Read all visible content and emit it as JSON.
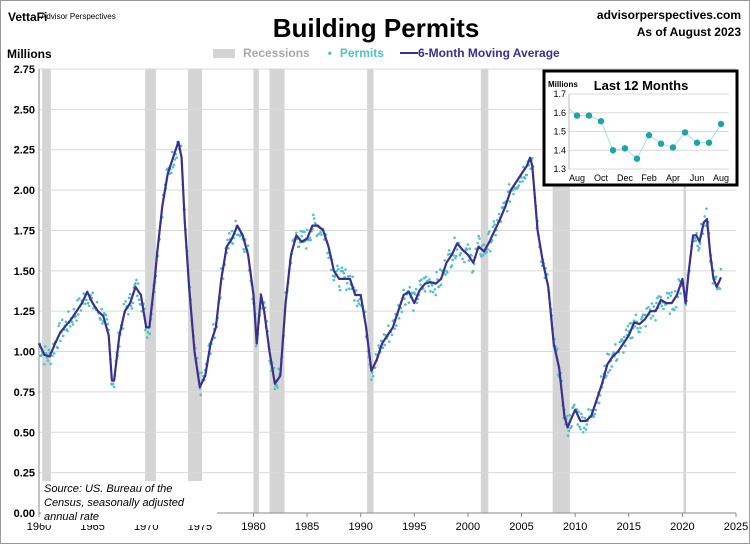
{
  "header": {
    "brand": "VettaFi",
    "brand_sub": "Advisor Perspectives",
    "title": "Building Permits",
    "site": "advisorperspectives.com",
    "as_of": "As of August 2023"
  },
  "source": "Source: US. Bureau of the Census, seasonally adjusted annual rate",
  "colors": {
    "recession": "#d4d4d4",
    "permits": "#4fc1c7",
    "ma": "#3b2f8f",
    "inset": "#1aa6a6"
  },
  "chart_data": [
    {
      "type": "line",
      "title": "Building Permits",
      "ylabel": "Millions",
      "xlabel": "",
      "xlim": [
        1960,
        2025
      ],
      "ylim": [
        0,
        2.75
      ],
      "grid": true,
      "x_ticks": [
        "1960",
        "1965",
        "1970",
        "1975",
        "1980",
        "1985",
        "1990",
        "1995",
        "2000",
        "2005",
        "2010",
        "2015",
        "2020",
        "2025"
      ],
      "y_ticks": [
        "0.00",
        "0.25",
        "0.50",
        "0.75",
        "1.00",
        "1.25",
        "1.50",
        "1.75",
        "2.00",
        "2.25",
        "2.50",
        "2.75"
      ],
      "legend": [
        "Recessions",
        "Permits",
        "6-Month Moving Average"
      ],
      "legend_position": "top-center",
      "recessions": [
        [
          1960.3,
          1961.1
        ],
        [
          1969.9,
          1970.9
        ],
        [
          1973.9,
          1975.2
        ],
        [
          1980.0,
          1980.5
        ],
        [
          1981.5,
          1982.9
        ],
        [
          1990.6,
          1991.2
        ],
        [
          2001.2,
          2001.9
        ],
        [
          2007.9,
          2009.5
        ],
        [
          2020.1,
          2020.35
        ]
      ],
      "moving_average": [
        [
          1960,
          1.05
        ],
        [
          1960.5,
          0.98
        ],
        [
          1961,
          0.97
        ],
        [
          1961.5,
          1.05
        ],
        [
          1962,
          1.12
        ],
        [
          1963,
          1.2
        ],
        [
          1964,
          1.3
        ],
        [
          1964.5,
          1.37
        ],
        [
          1965,
          1.3
        ],
        [
          1965.5,
          1.25
        ],
        [
          1966,
          1.22
        ],
        [
          1966.5,
          1.1
        ],
        [
          1966.8,
          0.82
        ],
        [
          1967,
          0.82
        ],
        [
          1967.5,
          1.1
        ],
        [
          1968,
          1.25
        ],
        [
          1968.5,
          1.3
        ],
        [
          1969,
          1.4
        ],
        [
          1969.5,
          1.35
        ],
        [
          1970,
          1.15
        ],
        [
          1970.3,
          1.15
        ],
        [
          1970.8,
          1.45
        ],
        [
          1971,
          1.6
        ],
        [
          1971.5,
          1.9
        ],
        [
          1972,
          2.1
        ],
        [
          1972.5,
          2.2
        ],
        [
          1973,
          2.3
        ],
        [
          1973.3,
          2.2
        ],
        [
          1973.6,
          1.8
        ],
        [
          1974,
          1.4
        ],
        [
          1974.5,
          1.0
        ],
        [
          1975,
          0.78
        ],
        [
          1975.5,
          0.85
        ],
        [
          1976,
          1.05
        ],
        [
          1976.5,
          1.15
        ],
        [
          1977,
          1.45
        ],
        [
          1977.5,
          1.65
        ],
        [
          1978,
          1.7
        ],
        [
          1978.5,
          1.78
        ],
        [
          1979,
          1.72
        ],
        [
          1979.5,
          1.6
        ],
        [
          1980,
          1.35
        ],
        [
          1980.3,
          1.05
        ],
        [
          1980.7,
          1.35
        ],
        [
          1981,
          1.25
        ],
        [
          1981.5,
          1.0
        ],
        [
          1982,
          0.8
        ],
        [
          1982.5,
          0.85
        ],
        [
          1983,
          1.3
        ],
        [
          1983.5,
          1.6
        ],
        [
          1984,
          1.72
        ],
        [
          1984.5,
          1.68
        ],
        [
          1985,
          1.7
        ],
        [
          1985.5,
          1.78
        ],
        [
          1986,
          1.78
        ],
        [
          1986.5,
          1.75
        ],
        [
          1987,
          1.65
        ],
        [
          1987.5,
          1.5
        ],
        [
          1988,
          1.45
        ],
        [
          1988.5,
          1.45
        ],
        [
          1989,
          1.45
        ],
        [
          1989.5,
          1.35
        ],
        [
          1990,
          1.35
        ],
        [
          1990.5,
          1.15
        ],
        [
          1991,
          0.88
        ],
        [
          1991.5,
          0.95
        ],
        [
          1992,
          1.05
        ],
        [
          1992.5,
          1.1
        ],
        [
          1993,
          1.15
        ],
        [
          1993.5,
          1.25
        ],
        [
          1994,
          1.35
        ],
        [
          1994.5,
          1.37
        ],
        [
          1995,
          1.3
        ],
        [
          1995.5,
          1.38
        ],
        [
          1996,
          1.42
        ],
        [
          1996.5,
          1.43
        ],
        [
          1997,
          1.42
        ],
        [
          1997.5,
          1.45
        ],
        [
          1998,
          1.55
        ],
        [
          1998.5,
          1.6
        ],
        [
          1999,
          1.67
        ],
        [
          1999.5,
          1.63
        ],
        [
          2000,
          1.6
        ],
        [
          2000.5,
          1.55
        ],
        [
          2001,
          1.65
        ],
        [
          2001.5,
          1.62
        ],
        [
          2002,
          1.68
        ],
        [
          2002.5,
          1.75
        ],
        [
          2003,
          1.82
        ],
        [
          2003.5,
          1.9
        ],
        [
          2004,
          2.0
        ],
        [
          2004.5,
          2.05
        ],
        [
          2005,
          2.1
        ],
        [
          2005.5,
          2.15
        ],
        [
          2005.8,
          2.2
        ],
        [
          2006,
          2.15
        ],
        [
          2006.5,
          1.75
        ],
        [
          2007,
          1.55
        ],
        [
          2007.5,
          1.4
        ],
        [
          2008,
          1.05
        ],
        [
          2008.5,
          0.9
        ],
        [
          2009,
          0.6
        ],
        [
          2009.3,
          0.53
        ],
        [
          2009.6,
          0.58
        ],
        [
          2010,
          0.64
        ],
        [
          2010.5,
          0.57
        ],
        [
          2011,
          0.57
        ],
        [
          2011.5,
          0.6
        ],
        [
          2012,
          0.7
        ],
        [
          2012.5,
          0.8
        ],
        [
          2013,
          0.92
        ],
        [
          2013.5,
          0.97
        ],
        [
          2014,
          1.0
        ],
        [
          2014.5,
          1.05
        ],
        [
          2015,
          1.1
        ],
        [
          2015.5,
          1.18
        ],
        [
          2016,
          1.17
        ],
        [
          2016.5,
          1.2
        ],
        [
          2017,
          1.25
        ],
        [
          2017.5,
          1.25
        ],
        [
          2018,
          1.32
        ],
        [
          2018.5,
          1.3
        ],
        [
          2019,
          1.3
        ],
        [
          2019.5,
          1.35
        ],
        [
          2020,
          1.45
        ],
        [
          2020.3,
          1.3
        ],
        [
          2020.6,
          1.5
        ],
        [
          2021,
          1.72
        ],
        [
          2021.3,
          1.72
        ],
        [
          2021.6,
          1.68
        ],
        [
          2022,
          1.8
        ],
        [
          2022.3,
          1.82
        ],
        [
          2022.6,
          1.6
        ],
        [
          2022.9,
          1.45
        ],
        [
          2023.2,
          1.4
        ],
        [
          2023.6,
          1.46
        ]
      ]
    },
    {
      "type": "line",
      "title": "Last 12 Months",
      "ylabel": "Millions",
      "ylim": [
        1.3,
        1.7
      ],
      "y_ticks": [
        "1.3",
        "1.4",
        "1.5",
        "1.6",
        "1.7"
      ],
      "categories": [
        "Aug",
        "Sep",
        "Oct",
        "Nov",
        "Dec",
        "Jan",
        "Feb",
        "Mar",
        "Apr",
        "May",
        "Jun",
        "Jul",
        "Aug"
      ],
      "x_tick_labels": [
        "Aug",
        "Oct",
        "Dec",
        "Feb",
        "Apr",
        "Jun",
        "Aug"
      ],
      "values": [
        1.585,
        1.585,
        1.555,
        1.4,
        1.41,
        1.355,
        1.48,
        1.435,
        1.415,
        1.495,
        1.44,
        1.44,
        1.54
      ]
    }
  ]
}
